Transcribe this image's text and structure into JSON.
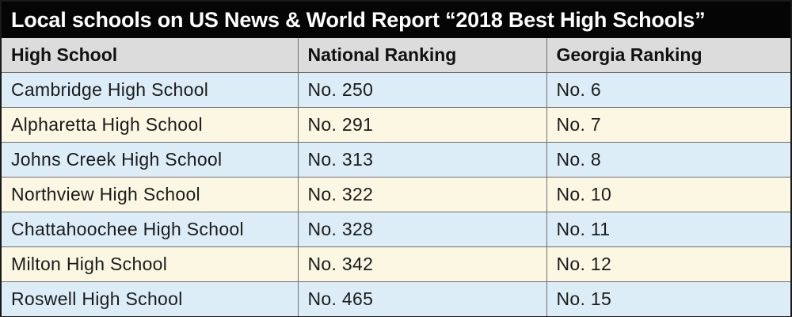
{
  "title": "Local schools on US News & World Report “2018 Best High Schools”",
  "columns": [
    "High School",
    "National Ranking",
    "Georgia Ranking"
  ],
  "rows": [
    {
      "school": "Cambridge High School",
      "national": "No. 250",
      "georgia": "No. 6"
    },
    {
      "school": "Alpharetta High School",
      "national": "No. 291",
      "georgia": "No. 7"
    },
    {
      "school": "Johns Creek High School",
      "national": "No. 313",
      "georgia": "No. 8"
    },
    {
      "school": "Northview High School",
      "national": "No. 322",
      "georgia": "No. 10"
    },
    {
      "school": "Chattahoochee High School",
      "national": "No. 328",
      "georgia": "No. 11"
    },
    {
      "school": "Milton High School",
      "national": "No. 342",
      "georgia": "No. 12"
    },
    {
      "school": "Roswell High School",
      "national": "No. 465",
      "georgia": "No. 15"
    }
  ],
  "colors": {
    "title_bg": "#050505",
    "header_bg": "#dcdcdc",
    "row_blue": "#dcedf8",
    "row_cream": "#fbf7e2"
  }
}
